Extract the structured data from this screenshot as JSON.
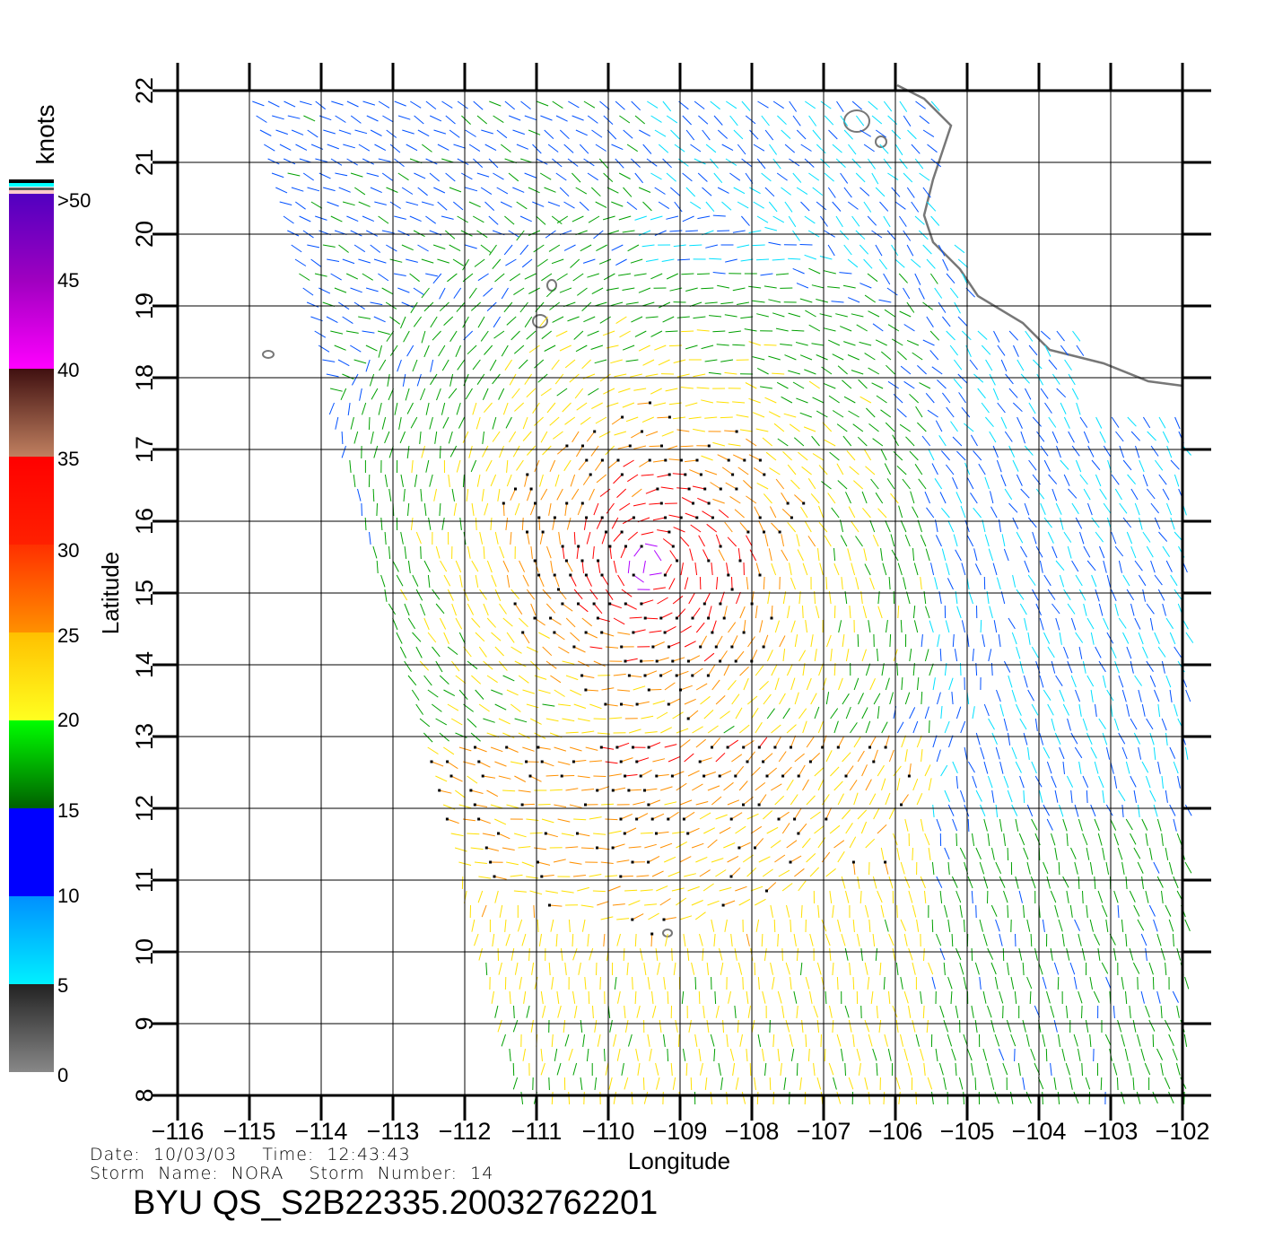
{
  "chart_data": {
    "type": "vector-field",
    "title": "BYU QS_S2B22335.20032762201",
    "xlabel": "Longitude",
    "ylabel": "Latitude",
    "xlim": [
      -116,
      -102
    ],
    "ylim": [
      8,
      22
    ],
    "xticks": [
      "-116",
      "-115",
      "-114",
      "-113",
      "-112",
      "-111",
      "-110",
      "-109",
      "-108",
      "-107",
      "-106",
      "-105",
      "-104",
      "-103",
      "-102"
    ],
    "yticks": [
      "8",
      "9",
      "10",
      "11",
      "12",
      "13",
      "14",
      "15",
      "16",
      "17",
      "18",
      "19",
      "20",
      "21",
      "22"
    ],
    "grid": true,
    "colorbar": {
      "unit": "knots",
      "labels": [
        "0",
        "5",
        "10",
        "15",
        "20",
        "25",
        "30",
        "35",
        "40",
        "45",
        ">50"
      ],
      "colors": [
        "#888888",
        "#222222",
        "#00e8ff",
        "#0090ff",
        "#0000ff",
        "#006000",
        "#00ff00",
        "#ffff20",
        "#ffc000",
        "#ff8000",
        "#ff2000",
        "#ff0000",
        "#c08060",
        "#401010",
        "#ff00ff",
        "#a000c0",
        "#5000c0"
      ]
    },
    "storm_center_approx": {
      "lon": -109.4,
      "lat": 15.4
    },
    "swath_west_edge": [
      [
        -115.0,
        22
      ],
      [
        -111.2,
        8
      ]
    ]
  },
  "info": {
    "date_line": "Date:  10/03/03    Time:  12:43:43",
    "storm_line": "Storm  Name:  NORA    Storm  Number:  14"
  }
}
